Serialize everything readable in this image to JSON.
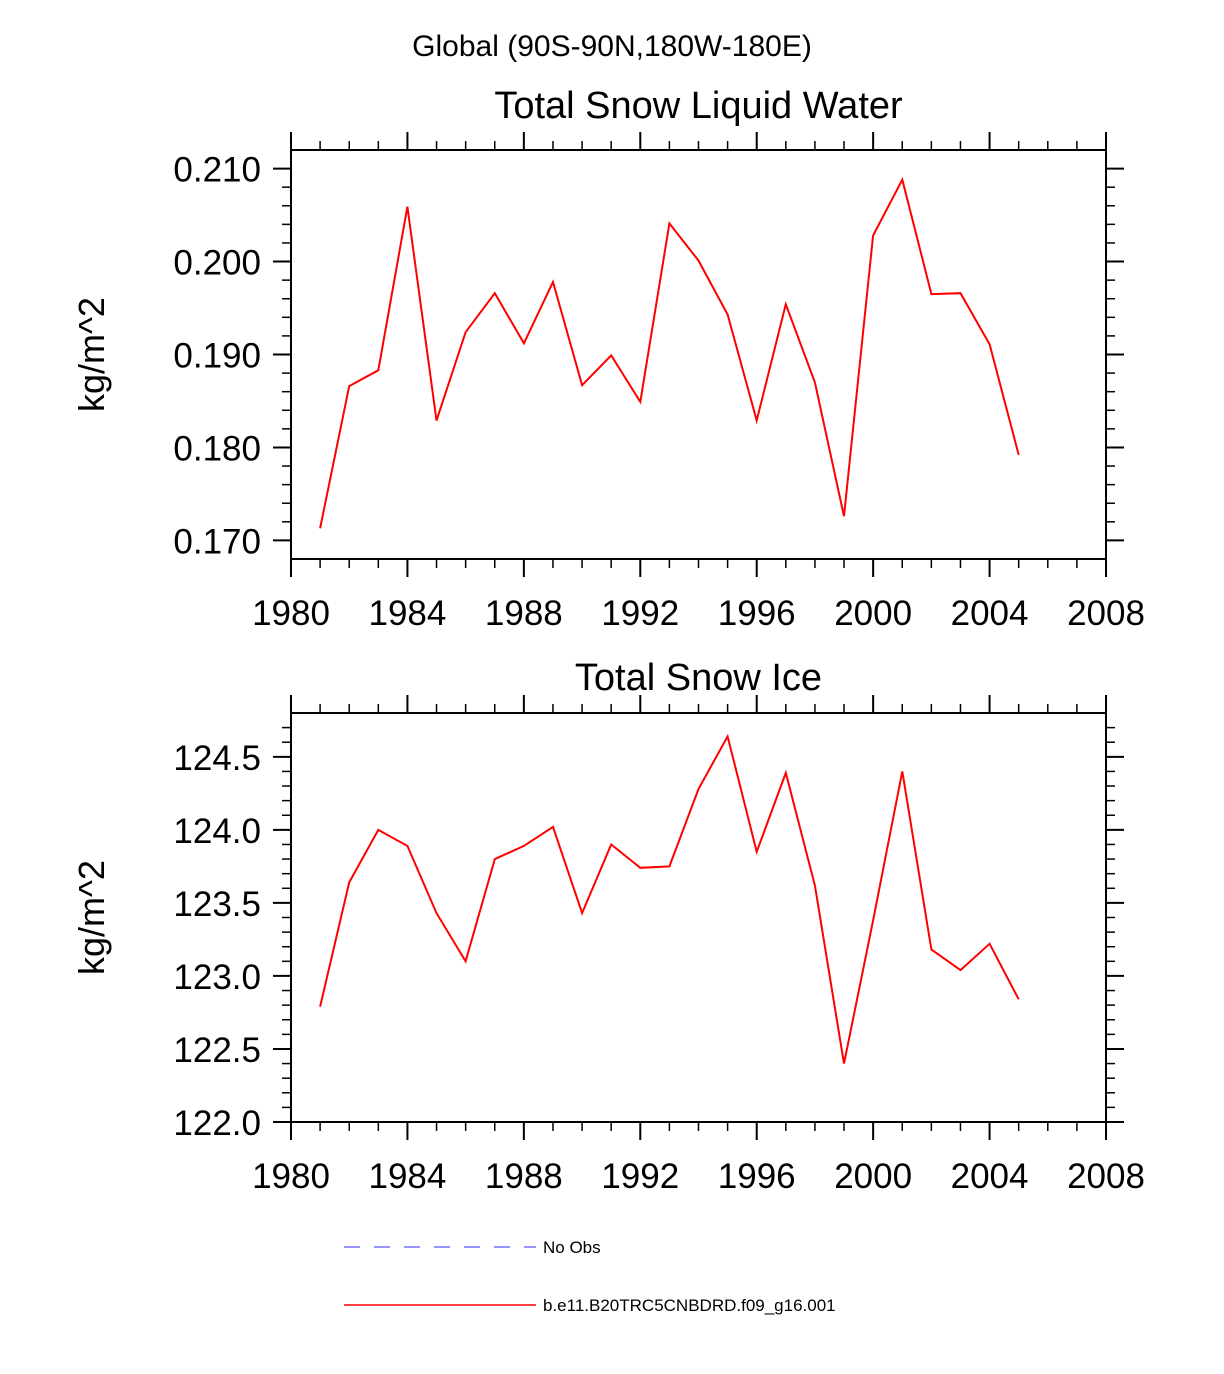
{
  "suptitle": "Global (90S-90N,180W-180E)",
  "chart_data": [
    {
      "type": "line",
      "title": "Total Snow Liquid Water",
      "xlabel": "",
      "ylabel": "kg/m^2",
      "xlim": [
        1980,
        2008
      ],
      "ylim": [
        0.168,
        0.212
      ],
      "x_ticks": [
        1980,
        1984,
        1988,
        1992,
        1996,
        2000,
        2004,
        2008
      ],
      "x_tick_labels": [
        "1980",
        "1984",
        "1988",
        "1992",
        "1996",
        "2000",
        "2004",
        "2008"
      ],
      "y_ticks": [
        0.17,
        0.18,
        0.19,
        0.2,
        0.21
      ],
      "y_tick_labels": [
        "0.170",
        "0.180",
        "0.190",
        "0.200",
        "0.210"
      ],
      "grid": false,
      "series": [
        {
          "name": "b.e11.B20TRC5CNBDRD.f09_g16.001",
          "color": "#ff0000",
          "x": [
            1981,
            1982,
            1983,
            1984,
            1985,
            1986,
            1987,
            1988,
            1989,
            1990,
            1991,
            1992,
            1993,
            1994,
            1995,
            1996,
            1997,
            1998,
            1999,
            2000,
            2001,
            2002,
            2003,
            2004,
            2005
          ],
          "values": [
            0.1713,
            0.1866,
            0.1883,
            0.2059,
            0.1829,
            0.1924,
            0.1966,
            0.1912,
            0.1978,
            0.1867,
            0.1899,
            0.1849,
            0.2041,
            0.2001,
            0.1943,
            0.1829,
            0.1954,
            0.187,
            0.1726,
            0.2028,
            0.2088,
            0.1965,
            0.1966,
            0.1911,
            0.1792
          ]
        }
      ]
    },
    {
      "type": "line",
      "title": "Total Snow Ice",
      "xlabel": "",
      "ylabel": "kg/m^2",
      "xlim": [
        1980,
        2008
      ],
      "ylim": [
        122.0,
        124.8
      ],
      "x_ticks": [
        1980,
        1984,
        1988,
        1992,
        1996,
        2000,
        2004,
        2008
      ],
      "x_tick_labels": [
        "1980",
        "1984",
        "1988",
        "1992",
        "1996",
        "2000",
        "2004",
        "2008"
      ],
      "y_ticks": [
        122.0,
        122.5,
        123.0,
        123.5,
        124.0,
        124.5
      ],
      "y_tick_labels": [
        "122.0",
        "122.5",
        "123.0",
        "123.5",
        "124.0",
        "124.5"
      ],
      "grid": false,
      "series": [
        {
          "name": "b.e11.B20TRC5CNBDRD.f09_g16.001",
          "color": "#ff0000",
          "x": [
            1981,
            1982,
            1983,
            1984,
            1985,
            1986,
            1987,
            1988,
            1989,
            1990,
            1991,
            1992,
            1993,
            1994,
            1995,
            1996,
            1997,
            1998,
            1999,
            2000,
            2001,
            2002,
            2003,
            2004,
            2005
          ],
          "values": [
            122.79,
            123.64,
            124.0,
            123.89,
            123.43,
            123.1,
            123.8,
            123.89,
            124.02,
            123.43,
            123.9,
            123.74,
            123.75,
            124.28,
            124.64,
            123.85,
            124.39,
            123.62,
            122.4,
            123.38,
            124.4,
            123.18,
            123.04,
            123.22,
            122.84
          ]
        }
      ]
    }
  ],
  "legend": {
    "placement": "bottom-center",
    "entries": [
      {
        "label": "No Obs",
        "color": "#7070ff",
        "style": "dashed"
      },
      {
        "label": "b.e11.B20TRC5CNBDRD.f09_g16.001",
        "color": "#ff0000",
        "style": "solid"
      }
    ]
  }
}
